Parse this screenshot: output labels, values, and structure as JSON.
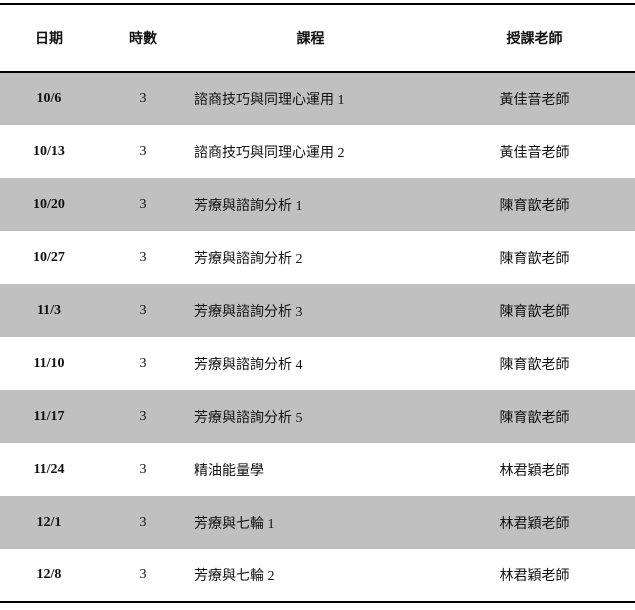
{
  "headers": {
    "date": "日期",
    "hours": "時數",
    "course": "課程",
    "teacher": "授課老師"
  },
  "rows": [
    {
      "date": "10/6",
      "hours": "3",
      "course": "諮商技巧與同理心運用 1",
      "teacher": "黃佳音老師"
    },
    {
      "date": "10/13",
      "hours": "3",
      "course": "諮商技巧與同理心運用 2",
      "teacher": "黃佳音老師"
    },
    {
      "date": "10/20",
      "hours": "3",
      "course": "芳療與諮詢分析 1",
      "teacher": "陳育歆老師"
    },
    {
      "date": "10/27",
      "hours": "3",
      "course": "芳療與諮詢分析 2",
      "teacher": "陳育歆老師"
    },
    {
      "date": "11/3",
      "hours": "3",
      "course": "芳療與諮詢分析 3",
      "teacher": "陳育歆老師"
    },
    {
      "date": "11/10",
      "hours": "3",
      "course": "芳療與諮詢分析 4",
      "teacher": "陳育歆老師"
    },
    {
      "date": "11/17",
      "hours": "3",
      "course": "芳療與諮詢分析 5",
      "teacher": "陳育歆老師"
    },
    {
      "date": "11/24",
      "hours": "3",
      "course": "精油能量學",
      "teacher": "林君穎老師"
    },
    {
      "date": "12/1",
      "hours": "3",
      "course": "芳療與七輪 1",
      "teacher": "林君穎老師"
    },
    {
      "date": "12/8",
      "hours": "3",
      "course": "芳療與七輪 2",
      "teacher": "林君穎老師"
    }
  ],
  "colors": {
    "shaded_row": "#c0c0c0",
    "border": "#000000"
  }
}
